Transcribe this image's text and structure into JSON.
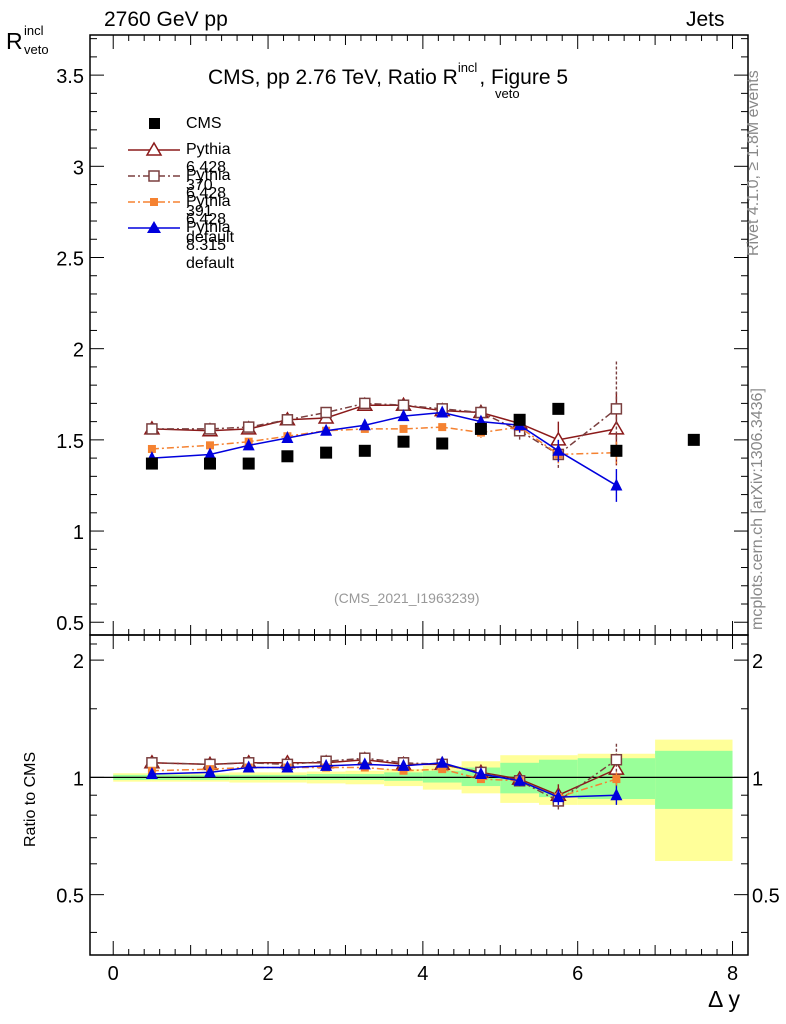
{
  "header": {
    "left": "2760 GeV pp",
    "right": "Jets"
  },
  "side": {
    "rivet": "Rivet 4.1.0, ≥ 1.8M events",
    "mcplots": "mcplots.cern.ch [arXiv:1306.3436]"
  },
  "watermark": "(CMS_2021_I1963239)",
  "colors": {
    "cms": "#000000",
    "p370": "#8b1a1a",
    "p391": "#7a3f3f",
    "p6def": "#f58231",
    "p8def": "#0000dd",
    "band_green": "#99ff99",
    "band_yellow": "#ffff99"
  },
  "chart_data": [
    {
      "type": "scatter",
      "title": "CMS, pp 2.76 TeV, Ratio R",
      "title_sup": "incl",
      "title_sub": "veto",
      "title_suffix": ", Figure 5",
      "ylabel": "R",
      "ylabel_sup": "incl",
      "ylabel_sub": "veto",
      "xlim": [
        -0.3,
        8.2
      ],
      "ylim": [
        0.43,
        3.72
      ],
      "yticks": [
        0.5,
        1,
        1.5,
        2,
        2.5,
        3,
        3.5
      ],
      "ytick_labels": [
        "0.5",
        "1",
        "1.5",
        "2",
        "2.5",
        "3",
        "3.5"
      ],
      "series": [
        {
          "name": "CMS",
          "key": "cms",
          "marker": "square",
          "x": [
            0.5,
            1.25,
            1.75,
            2.25,
            2.75,
            3.25,
            3.75,
            4.25,
            4.75,
            5.25,
            5.75,
            6.5,
            7.5
          ],
          "y": [
            1.37,
            1.37,
            1.37,
            1.41,
            1.43,
            1.44,
            1.49,
            1.48,
            1.56,
            1.61,
            1.67,
            1.44,
            1.5
          ]
        },
        {
          "name": "Pythia 6.428 370",
          "key": "p370",
          "marker": "triangle-open",
          "dash": "",
          "x": [
            0.5,
            1.25,
            1.75,
            2.25,
            2.75,
            3.25,
            3.75,
            4.25,
            4.75,
            5.25,
            5.75,
            6.5
          ],
          "y": [
            1.56,
            1.55,
            1.56,
            1.61,
            1.62,
            1.69,
            1.69,
            1.66,
            1.65,
            1.59,
            1.5,
            1.56
          ],
          "err": [
            0,
            0,
            0,
            0,
            0,
            0,
            0,
            0,
            0.04,
            0.05,
            0.1,
            0.2
          ]
        },
        {
          "name": "Pythia 6.428 391",
          "key": "p391",
          "marker": "square-open",
          "dash": "7,3,2,3",
          "x": [
            0.5,
            1.25,
            1.75,
            2.25,
            2.75,
            3.25,
            3.75,
            4.25,
            4.75,
            5.25,
            5.75,
            6.5
          ],
          "y": [
            1.56,
            1.56,
            1.57,
            1.61,
            1.65,
            1.7,
            1.69,
            1.67,
            1.65,
            1.55,
            1.42,
            1.67
          ],
          "err": [
            0,
            0,
            0,
            0,
            0,
            0,
            0,
            0,
            0.04,
            0.05,
            0.08,
            0.26
          ]
        },
        {
          "name": "Pythia 6.428 default",
          "key": "p6def",
          "marker": "square-small",
          "dash": "7,3,2,3",
          "x": [
            0.5,
            1.25,
            1.75,
            2.25,
            2.75,
            3.25,
            3.75,
            4.25,
            4.75,
            5.25,
            5.75,
            6.5
          ],
          "y": [
            1.45,
            1.47,
            1.49,
            1.52,
            1.55,
            1.56,
            1.56,
            1.57,
            1.54,
            1.57,
            1.42,
            1.43
          ],
          "err": [
            0,
            0,
            0,
            0,
            0,
            0,
            0,
            0,
            0.03,
            0.04,
            0.05,
            0.06
          ]
        },
        {
          "name": "Pythia 8.315 default",
          "key": "p8def",
          "marker": "triangle",
          "dash": "",
          "x": [
            0.5,
            1.25,
            1.75,
            2.25,
            2.75,
            3.25,
            3.75,
            4.25,
            4.75,
            5.25,
            5.75,
            6.5
          ],
          "y": [
            1.4,
            1.42,
            1.47,
            1.51,
            1.55,
            1.58,
            1.63,
            1.65,
            1.6,
            1.58,
            1.44,
            1.25
          ],
          "err": [
            0,
            0,
            0,
            0,
            0,
            0,
            0,
            0,
            0.03,
            0.04,
            0.06,
            0.09
          ]
        }
      ]
    },
    {
      "type": "scatter",
      "ylabel": "Ratio to CMS",
      "xlabel": "Δ y",
      "xlim": [
        -0.3,
        8.2
      ],
      "ylim": [
        0.35,
        2.32
      ],
      "yscale": "log",
      "yticks": [
        0.5,
        1,
        2
      ],
      "ytick_labels": [
        "0.5",
        "1",
        "2"
      ],
      "xticks": [
        0,
        2,
        4,
        6,
        8
      ],
      "xtick_labels": [
        "0",
        "2",
        "4",
        "6",
        "8"
      ],
      "bands": {
        "edges": [
          0,
          0.5,
          1,
          1.5,
          2,
          2.5,
          3,
          3.5,
          4,
          4.5,
          5,
          5.5,
          6,
          7,
          8
        ],
        "green_lo": [
          0.985,
          0.985,
          0.985,
          0.985,
          0.985,
          0.985,
          0.985,
          0.98,
          0.97,
          0.95,
          0.91,
          0.89,
          0.88,
          0.83
        ],
        "green_hi": [
          1.015,
          1.015,
          1.015,
          1.015,
          1.015,
          1.02,
          1.02,
          1.03,
          1.04,
          1.06,
          1.09,
          1.11,
          1.12,
          1.17
        ],
        "yellow_lo": [
          0.975,
          0.975,
          0.975,
          0.97,
          0.97,
          0.965,
          0.96,
          0.95,
          0.93,
          0.91,
          0.86,
          0.85,
          0.85,
          0.61
        ],
        "yellow_hi": [
          1.025,
          1.025,
          1.025,
          1.03,
          1.03,
          1.035,
          1.04,
          1.05,
          1.07,
          1.1,
          1.14,
          1.14,
          1.15,
          1.25
        ]
      },
      "series": [
        {
          "name": "Pythia 6.428 370",
          "key": "p370",
          "marker": "triangle-open",
          "dash": "",
          "x": [
            0.5,
            1.25,
            1.75,
            2.25,
            2.75,
            3.25,
            3.75,
            4.25,
            4.75,
            5.25,
            5.75,
            6.5
          ],
          "y": [
            1.09,
            1.08,
            1.09,
            1.09,
            1.09,
            1.11,
            1.08,
            1.08,
            1.03,
            0.99,
            0.9,
            1.05
          ],
          "err": [
            0,
            0,
            0,
            0,
            0,
            0,
            0,
            0,
            0.03,
            0.03,
            0.06,
            0.1
          ]
        },
        {
          "name": "Pythia 6.428 391",
          "key": "p391",
          "marker": "square-open",
          "dash": "7,3,2,3",
          "x": [
            0.5,
            1.25,
            1.75,
            2.25,
            2.75,
            3.25,
            3.75,
            4.25,
            4.75,
            5.25,
            5.75,
            6.5
          ],
          "y": [
            1.09,
            1.08,
            1.09,
            1.08,
            1.1,
            1.12,
            1.09,
            1.08,
            1.03,
            0.98,
            0.87,
            1.11
          ],
          "err": [
            0,
            0,
            0,
            0,
            0,
            0,
            0,
            0,
            0.03,
            0.03,
            0.05,
            0.11
          ]
        },
        {
          "name": "Pythia 6.428 default",
          "key": "p6def",
          "marker": "square-small",
          "dash": "7,3,2,3",
          "x": [
            0.5,
            1.25,
            1.75,
            2.25,
            2.75,
            3.25,
            3.75,
            4.25,
            4.75,
            5.25,
            5.75,
            6.5
          ],
          "y": [
            1.04,
            1.05,
            1.06,
            1.06,
            1.06,
            1.06,
            1.04,
            1.05,
            0.99,
            0.98,
            0.89,
            0.99
          ],
          "err": [
            0,
            0,
            0,
            0,
            0,
            0,
            0,
            0,
            0.02,
            0.03,
            0.04,
            0.04
          ]
        },
        {
          "name": "Pythia 8.315 default",
          "key": "p8def",
          "marker": "triangle",
          "dash": "",
          "x": [
            0.5,
            1.25,
            1.75,
            2.25,
            2.75,
            3.25,
            3.75,
            4.25,
            4.75,
            5.25,
            5.75,
            6.5
          ],
          "y": [
            1.02,
            1.03,
            1.06,
            1.06,
            1.07,
            1.08,
            1.07,
            1.09,
            1.02,
            0.98,
            0.89,
            0.9
          ],
          "err": [
            0,
            0,
            0,
            0,
            0,
            0,
            0,
            0,
            0.02,
            0.03,
            0.04,
            0.05
          ]
        }
      ]
    }
  ]
}
